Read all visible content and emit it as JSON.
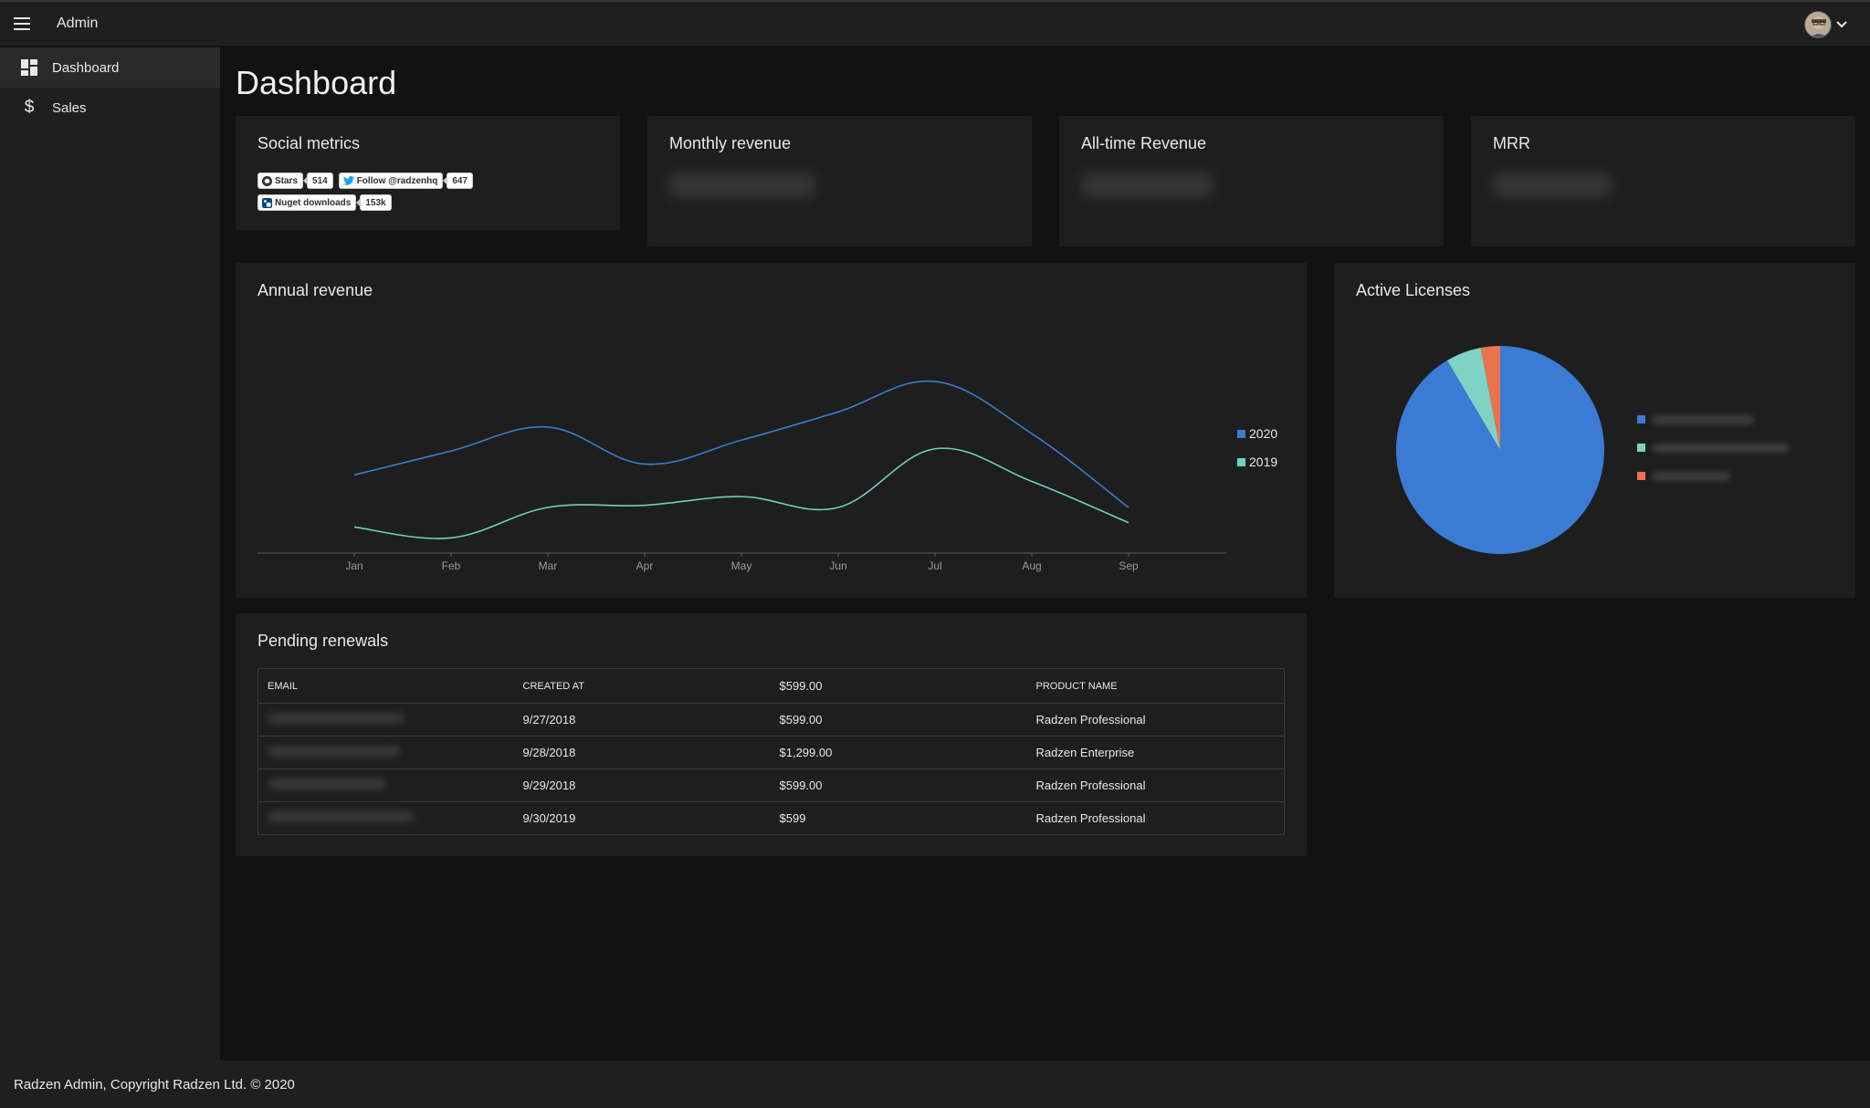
{
  "header": {
    "title": "Admin",
    "menu_icon": "hamburger-icon",
    "profile_icon": "avatar",
    "chevron_icon": "chevron-down-icon"
  },
  "sidebar": {
    "items": [
      {
        "label": "Dashboard",
        "icon": "dashboard-icon",
        "active": true
      },
      {
        "label": "Sales",
        "icon": "dollar-icon",
        "active": false
      }
    ]
  },
  "main": {
    "page_title": "Dashboard",
    "social_metrics": {
      "title": "Social metrics",
      "stars_label": "Stars",
      "stars_count": "514",
      "follow_label": "Follow @radzenhq",
      "follow_count": "647",
      "nuget_label": "Nuget downloads",
      "nuget_count": "153k"
    },
    "monthly_revenue": {
      "title": "Monthly revenue"
    },
    "alltime_revenue": {
      "title": "All-time Revenue"
    },
    "mrr": {
      "title": "MRR"
    },
    "annual_revenue": {
      "title": "Annual revenue"
    },
    "active_licenses": {
      "title": "Active Licenses"
    },
    "pending_renewals": {
      "title": "Pending renewals",
      "columns": [
        "EMAIL",
        "CREATED AT",
        "$599.00",
        "PRODUCT NAME"
      ],
      "rows": [
        {
          "created": "9/27/2018",
          "amount": "$599.00",
          "product": "Radzen Professional"
        },
        {
          "created": "9/28/2018",
          "amount": "$1,299.00",
          "product": "Radzen Enterprise"
        },
        {
          "created": "9/29/2018",
          "amount": "$599.00",
          "product": "Radzen Professional"
        },
        {
          "created": "9/30/2019",
          "amount": "$599",
          "product": "Radzen Professional"
        }
      ]
    }
  },
  "chart_data": [
    {
      "type": "line",
      "categories": [
        "Jan",
        "Feb",
        "Mar",
        "Apr",
        "May",
        "Jun",
        "Jul",
        "Aug",
        "Sep"
      ],
      "series": [
        {
          "name": "2020",
          "color": "#3b7bd4",
          "values": [
            0.36,
            0.47,
            0.58,
            0.41,
            0.52,
            0.65,
            0.79,
            0.55,
            0.21
          ]
        },
        {
          "name": "2019",
          "color": "#6fd1c1",
          "values": [
            0.12,
            0.07,
            0.21,
            0.22,
            0.26,
            0.21,
            0.48,
            0.33,
            0.14
          ]
        }
      ],
      "ylim": [
        0,
        1
      ],
      "grid": false,
      "legend": "right"
    },
    {
      "type": "pie",
      "slices": [
        {
          "value": 91.5,
          "color": "#3b7bd4"
        },
        {
          "value": 5.5,
          "color": "#7fd3c4"
        },
        {
          "value": 3.0,
          "color": "#e8734d"
        }
      ],
      "legend": "right"
    }
  ],
  "footer": {
    "text": "Radzen Admin, Copyright Radzen Ltd. © 2020"
  }
}
